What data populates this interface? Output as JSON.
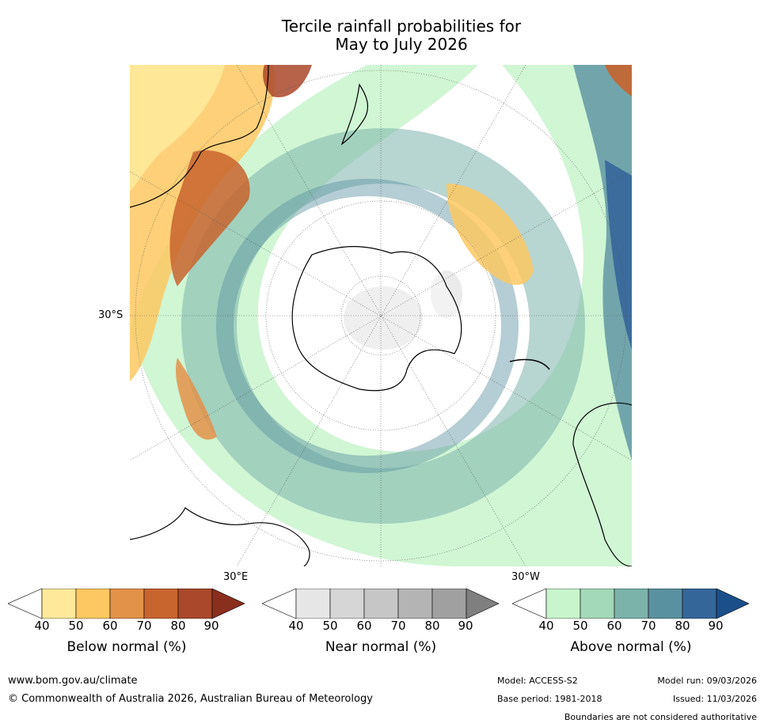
{
  "title": {
    "line1": "Tercile rainfall probabilities for",
    "line2": "May to July 2026"
  },
  "map": {
    "lat_label": "30°S",
    "lon_labels": [
      "30°E",
      "30°W"
    ]
  },
  "colorbars": [
    {
      "name": "below",
      "label": "Below normal (%)",
      "ticks": [
        "40",
        "50",
        "60",
        "70",
        "80",
        "90"
      ],
      "colors": [
        "#ffffff",
        "#fee99a",
        "#fdc861",
        "#e3924a",
        "#c8642e",
        "#a9482a",
        "#8a2e1e"
      ]
    },
    {
      "name": "near",
      "label": "Near normal (%)",
      "ticks": [
        "40",
        "50",
        "60",
        "70",
        "80",
        "90"
      ],
      "colors": [
        "#ffffff",
        "#e6e6e6",
        "#d6d6d6",
        "#c6c6c6",
        "#b4b4b4",
        "#a0a0a0",
        "#7f7f7f"
      ]
    },
    {
      "name": "above",
      "label": "Above normal (%)",
      "ticks": [
        "40",
        "50",
        "60",
        "70",
        "80",
        "90"
      ],
      "colors": [
        "#ffffff",
        "#c8f5cc",
        "#a3d8b9",
        "#7bb3ab",
        "#5a91a0",
        "#35669a",
        "#1b4f8a"
      ]
    }
  ],
  "footer": {
    "url": "www.bom.gov.au/climate",
    "copyright": "© Commonwealth of Australia 2026, Australian Bureau of Meteorology",
    "model": "Model: ACCESS-S2",
    "model_run": "Model run: 09/03/2026",
    "base_period": "Base period: 1981-2018",
    "issued": "Issued: 11/03/2026",
    "disclaimer": "Boundaries are not considered authoritative"
  }
}
